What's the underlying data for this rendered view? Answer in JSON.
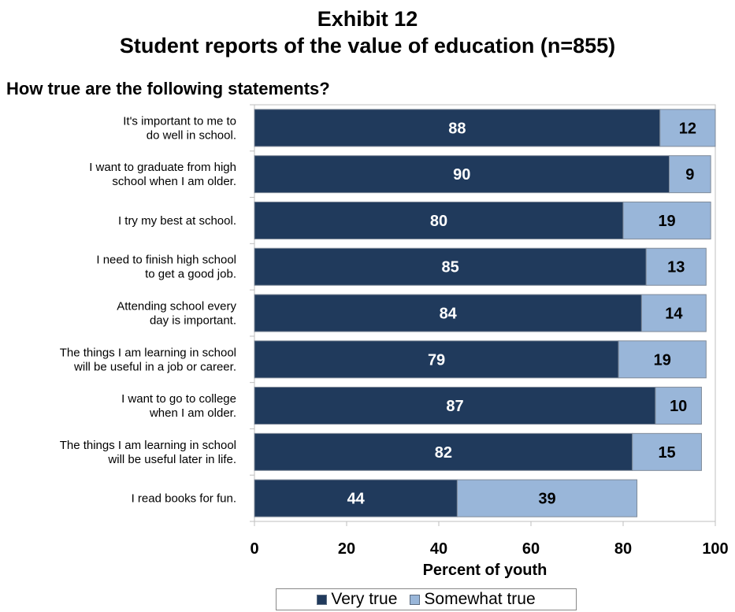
{
  "title_line1": "Exhibit 12",
  "title_line2": "Student reports of the value of education (n=855)",
  "subtitle": "How true are the following statements?",
  "colors": {
    "very_true": "#203a5c",
    "somewhat_true": "#99b6d9",
    "bar_border": "#7f8a99"
  },
  "chart_data": {
    "type": "bar",
    "orientation": "horizontal",
    "stacked": true,
    "categories": [
      [
        "It's important to me to",
        "do well in school."
      ],
      [
        "I want to graduate from high",
        "school when I am older."
      ],
      [
        "I try my best at school."
      ],
      [
        "I need to finish high school",
        "to get a good job."
      ],
      [
        "Attending school every",
        "day is important."
      ],
      [
        "The things I am learning in school",
        "will be useful in a job or career."
      ],
      [
        "I want to go to college",
        "when I am older."
      ],
      [
        "The things I am learning in school",
        "will be useful later in life."
      ],
      [
        "I read books for fun."
      ]
    ],
    "series": [
      {
        "name": "Very true",
        "values": [
          88,
          90,
          80,
          85,
          84,
          79,
          87,
          82,
          44
        ]
      },
      {
        "name": "Somewhat true",
        "values": [
          12,
          9,
          19,
          13,
          14,
          19,
          10,
          15,
          39
        ]
      }
    ],
    "xlabel": "Percent of youth",
    "xlim": [
      0,
      100
    ],
    "xticks": [
      0,
      20,
      40,
      60,
      80,
      100
    ],
    "grid": false,
    "legend_position": "bottom"
  }
}
